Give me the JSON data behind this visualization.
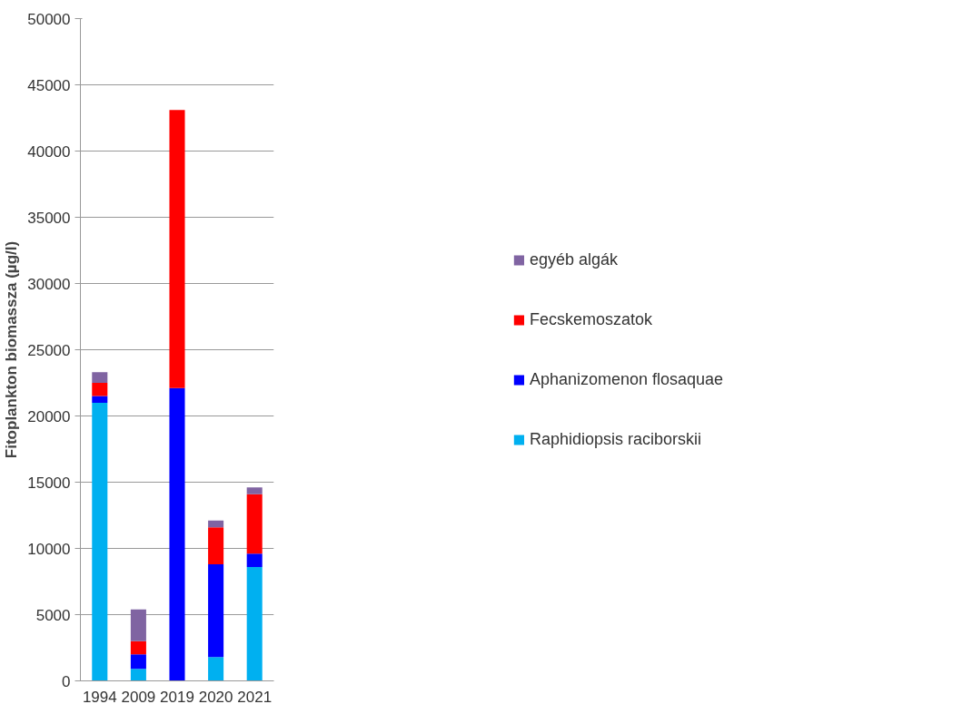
{
  "chart_data": {
    "type": "bar",
    "stacked": true,
    "ylabel": "Fitoplankton biomassza (µg/l)",
    "categories": [
      "1994",
      "2009",
      "2019",
      "2020",
      "2021"
    ],
    "series": [
      {
        "name": "Raphidiopsis raciborskii",
        "color": "#00b0f0",
        "values": [
          21000,
          900,
          0,
          1800,
          8600
        ]
      },
      {
        "name": "Aphanizomenon flosaquae",
        "color": "#0000ff",
        "values": [
          500,
          1100,
          22100,
          7000,
          1000
        ]
      },
      {
        "name": "Fecskemoszatok",
        "color": "#ff0000",
        "values": [
          1000,
          1000,
          21000,
          2800,
          4500
        ]
      },
      {
        "name": "egyéb algák",
        "color": "#8064a2",
        "values": [
          800,
          2400,
          0,
          500,
          500
        ]
      }
    ],
    "ylim": [
      0,
      50000
    ],
    "yticks": [
      0,
      5000,
      10000,
      15000,
      20000,
      25000,
      30000,
      35000,
      40000,
      45000,
      50000
    ],
    "grid": "y",
    "legend": "right"
  }
}
